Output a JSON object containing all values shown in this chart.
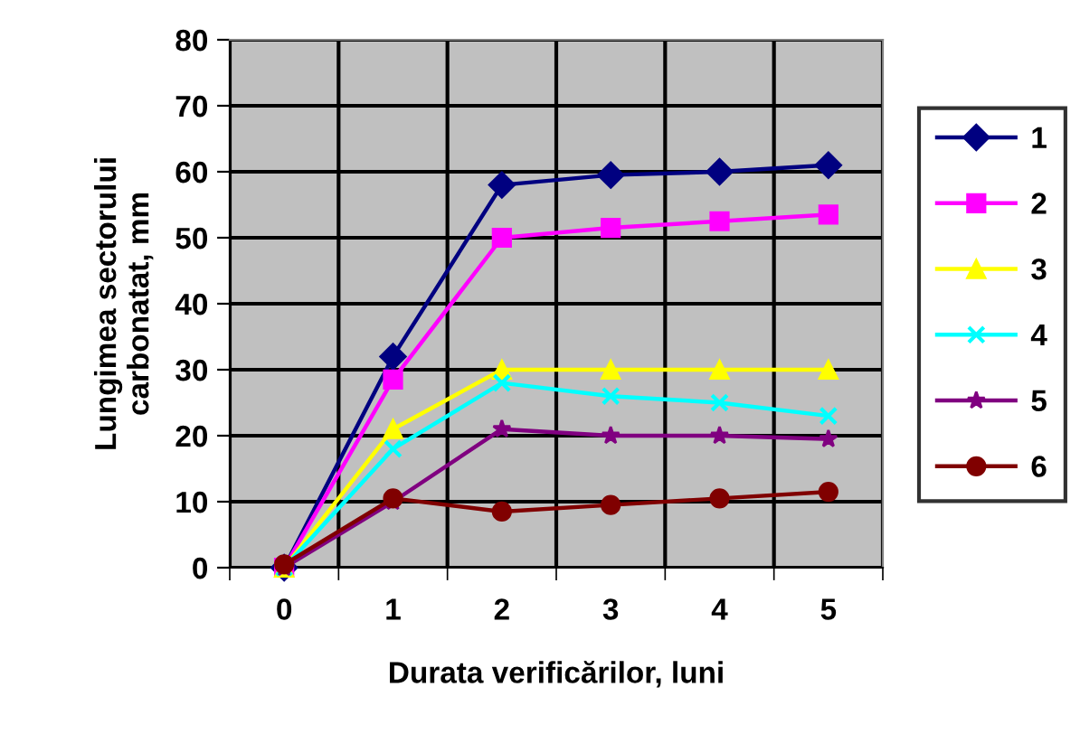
{
  "chart_data": {
    "type": "line",
    "xlabel": "Durata verificărilor, luni",
    "ylabel": "Lungimea sectorului\ncarbonatat, mm",
    "categories": [
      "0",
      "1",
      "2",
      "3",
      "4",
      "5"
    ],
    "series": [
      {
        "name": "1",
        "color": "#000080",
        "marker": "diamond",
        "values": [
          0,
          32,
          58,
          59.5,
          60,
          61
        ]
      },
      {
        "name": "2",
        "color": "#ff00ff",
        "marker": "square",
        "values": [
          0,
          28.5,
          50,
          51.5,
          52.5,
          53.5
        ]
      },
      {
        "name": "3",
        "color": "#ffff00",
        "marker": "triangle",
        "values": [
          0,
          21,
          30,
          30,
          30,
          30
        ]
      },
      {
        "name": "4",
        "color": "#00ffff",
        "marker": "cross",
        "values": [
          0,
          18,
          28,
          26,
          25,
          23
        ]
      },
      {
        "name": "5",
        "color": "#800080",
        "marker": "star",
        "values": [
          0,
          10,
          21,
          20,
          20,
          19.5
        ]
      },
      {
        "name": "6",
        "color": "#800000",
        "marker": "circle",
        "values": [
          0.5,
          10.5,
          8.5,
          9.5,
          10.5,
          11.5
        ]
      }
    ],
    "ylim": [
      0,
      80
    ],
    "yticks": [
      0,
      10,
      20,
      30,
      40,
      50,
      60,
      70,
      80
    ],
    "grid": true,
    "legend": "right"
  }
}
